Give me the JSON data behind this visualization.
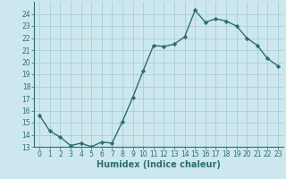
{
  "title": "",
  "x_values": [
    0,
    1,
    2,
    3,
    4,
    5,
    6,
    7,
    8,
    9,
    10,
    11,
    12,
    13,
    14,
    15,
    16,
    17,
    18,
    19,
    20,
    21,
    22,
    23
  ],
  "y_values": [
    15.6,
    14.3,
    13.8,
    13.1,
    13.3,
    13.0,
    13.4,
    13.3,
    15.1,
    17.1,
    19.3,
    21.4,
    21.3,
    21.5,
    22.1,
    24.3,
    23.3,
    23.6,
    23.4,
    23.0,
    22.0,
    21.4,
    20.3,
    19.7
  ],
  "line_color": "#2d6e6e",
  "marker": "D",
  "marker_size": 2.2,
  "bg_color": "#cce8ee",
  "grid_color": "#aacdd6",
  "xlabel": "Humidex (Indice chaleur)",
  "ylabel": "",
  "ylim_min": 13,
  "ylim_max": 25,
  "xlim_min": -0.5,
  "xlim_max": 23.5,
  "yticks": [
    13,
    14,
    15,
    16,
    17,
    18,
    19,
    20,
    21,
    22,
    23,
    24
  ],
  "xticks": [
    0,
    1,
    2,
    3,
    4,
    5,
    6,
    7,
    8,
    9,
    10,
    11,
    12,
    13,
    14,
    15,
    16,
    17,
    18,
    19,
    20,
    21,
    22,
    23
  ],
  "tick_fontsize": 5.5,
  "xlabel_fontsize": 7,
  "linewidth": 1.0
}
